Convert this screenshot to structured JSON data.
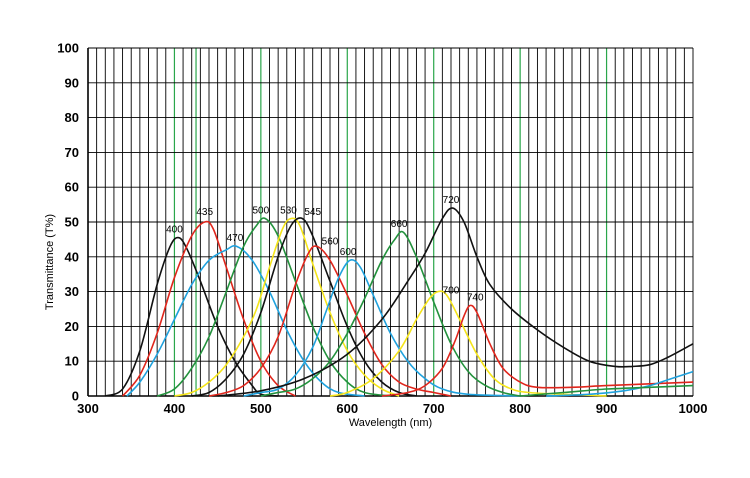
{
  "chart_data": {
    "type": "line",
    "title": "",
    "xlabel": "Wavelength (nm)",
    "ylabel": "Transmittance (T%)",
    "xlim": [
      300,
      1000
    ],
    "ylim": [
      0,
      100
    ],
    "x_ticks": [
      "300",
      "400",
      "500",
      "600",
      "700",
      "800",
      "900",
      "1000"
    ],
    "y_ticks": [
      "0",
      "10",
      "20",
      "30",
      "40",
      "50",
      "60",
      "70",
      "80",
      "90",
      "100"
    ],
    "grid": true,
    "legend": "none",
    "colors": {
      "black": "#111111",
      "red": "#e0261c",
      "blue": "#1fa2de",
      "green": "#23923d",
      "yellow": "#f5e51b",
      "grid_line": "#000000",
      "grid_highlight": "#2aa64a"
    },
    "series": [
      {
        "name": "400",
        "color": "black",
        "points": [
          [
            320,
            0
          ],
          [
            340,
            2
          ],
          [
            360,
            13
          ],
          [
            380,
            32
          ],
          [
            395,
            43
          ],
          [
            405,
            45.5
          ],
          [
            415,
            42
          ],
          [
            430,
            33
          ],
          [
            450,
            20
          ],
          [
            470,
            10
          ],
          [
            490,
            3
          ],
          [
            500,
            0.5
          ],
          [
            520,
            0
          ]
        ]
      },
      {
        "name": "435",
        "color": "red",
        "points": [
          [
            340,
            0
          ],
          [
            360,
            6
          ],
          [
            380,
            18
          ],
          [
            400,
            34
          ],
          [
            420,
            46
          ],
          [
            435,
            50
          ],
          [
            445,
            48
          ],
          [
            460,
            37
          ],
          [
            480,
            22
          ],
          [
            500,
            10
          ],
          [
            520,
            3
          ],
          [
            540,
            0
          ]
        ]
      },
      {
        "name": "470",
        "color": "blue",
        "points": [
          [
            345,
            0
          ],
          [
            360,
            4
          ],
          [
            380,
            12
          ],
          [
            400,
            22
          ],
          [
            420,
            32
          ],
          [
            440,
            39
          ],
          [
            460,
            42
          ],
          [
            472,
            43
          ],
          [
            490,
            39
          ],
          [
            510,
            30
          ],
          [
            530,
            19
          ],
          [
            550,
            10
          ],
          [
            570,
            4
          ],
          [
            590,
            1
          ],
          [
            620,
            0
          ]
        ]
      },
      {
        "name": "500",
        "color": "green",
        "points": [
          [
            380,
            0
          ],
          [
            400,
            2
          ],
          [
            420,
            8
          ],
          [
            440,
            17
          ],
          [
            460,
            30
          ],
          [
            480,
            43
          ],
          [
            495,
            49
          ],
          [
            505,
            51
          ],
          [
            520,
            46
          ],
          [
            540,
            33
          ],
          [
            560,
            20
          ],
          [
            580,
            10
          ],
          [
            600,
            4
          ],
          [
            620,
            1
          ],
          [
            650,
            0
          ]
        ]
      },
      {
        "name": "530",
        "color": "yellow",
        "points": [
          [
            400,
            0
          ],
          [
            420,
            1
          ],
          [
            440,
            4
          ],
          [
            460,
            9
          ],
          [
            480,
            17
          ],
          [
            495,
            25
          ],
          [
            510,
            37
          ],
          [
            525,
            48
          ],
          [
            535,
            51
          ],
          [
            545,
            49
          ],
          [
            560,
            38
          ],
          [
            580,
            24
          ],
          [
            600,
            13
          ],
          [
            620,
            6
          ],
          [
            640,
            2
          ],
          [
            660,
            0
          ]
        ]
      },
      {
        "name": "545",
        "color": "black",
        "points": [
          [
            420,
            0
          ],
          [
            440,
            1
          ],
          [
            460,
            5
          ],
          [
            480,
            12
          ],
          [
            500,
            24
          ],
          [
            520,
            40
          ],
          [
            535,
            49
          ],
          [
            548,
            51
          ],
          [
            560,
            46
          ],
          [
            580,
            33
          ],
          [
            600,
            20
          ],
          [
            620,
            10
          ],
          [
            640,
            4
          ],
          [
            660,
            1
          ],
          [
            680,
            0
          ]
        ]
      },
      {
        "name": "560",
        "color": "red",
        "points": [
          [
            440,
            0
          ],
          [
            460,
            1
          ],
          [
            480,
            3
          ],
          [
            500,
            8
          ],
          [
            520,
            17
          ],
          [
            540,
            32
          ],
          [
            555,
            41
          ],
          [
            565,
            43
          ],
          [
            580,
            39
          ],
          [
            600,
            29
          ],
          [
            620,
            18
          ],
          [
            640,
            9
          ],
          [
            660,
            4
          ],
          [
            680,
            2
          ],
          [
            700,
            1
          ],
          [
            720,
            0
          ]
        ]
      },
      {
        "name": "600",
        "color": "blue",
        "points": [
          [
            480,
            0
          ],
          [
            500,
            1
          ],
          [
            520,
            2
          ],
          [
            540,
            6
          ],
          [
            560,
            14
          ],
          [
            575,
            24
          ],
          [
            590,
            34
          ],
          [
            603,
            39
          ],
          [
            615,
            37
          ],
          [
            630,
            29
          ],
          [
            650,
            18
          ],
          [
            670,
            10
          ],
          [
            690,
            5
          ],
          [
            710,
            2
          ],
          [
            740,
            0.5
          ],
          [
            800,
            0
          ]
        ]
      },
      {
        "name": "660",
        "color": "green",
        "points": [
          [
            500,
            0
          ],
          [
            520,
            1
          ],
          [
            540,
            2
          ],
          [
            560,
            5
          ],
          [
            580,
            10
          ],
          [
            600,
            18
          ],
          [
            620,
            28
          ],
          [
            640,
            39
          ],
          [
            655,
            45
          ],
          [
            665,
            47
          ],
          [
            680,
            40
          ],
          [
            700,
            27
          ],
          [
            720,
            15
          ],
          [
            740,
            7
          ],
          [
            760,
            3
          ],
          [
            780,
            1
          ],
          [
            800,
            0
          ]
        ]
      },
      {
        "name": "720",
        "color": "black",
        "points": [
          [
            450,
            0
          ],
          [
            500,
            1.5
          ],
          [
            550,
            5
          ],
          [
            600,
            12
          ],
          [
            640,
            22
          ],
          [
            670,
            33
          ],
          [
            690,
            41
          ],
          [
            710,
            51
          ],
          [
            722,
            54
          ],
          [
            735,
            50
          ],
          [
            750,
            40
          ],
          [
            765,
            32
          ],
          [
            790,
            25
          ],
          [
            820,
            19
          ],
          [
            850,
            14
          ],
          [
            880,
            10
          ],
          [
            910,
            8.5
          ],
          [
            930,
            8.5
          ],
          [
            950,
            9
          ],
          [
            970,
            11
          ],
          [
            1000,
            15
          ]
        ]
      },
      {
        "name": "700",
        "color": "yellow",
        "points": [
          [
            580,
            0
          ],
          [
            600,
            1
          ],
          [
            630,
            5
          ],
          [
            660,
            13
          ],
          [
            680,
            22
          ],
          [
            695,
            28
          ],
          [
            705,
            30
          ],
          [
            715,
            29
          ],
          [
            730,
            22
          ],
          [
            750,
            12
          ],
          [
            770,
            5
          ],
          [
            790,
            2
          ],
          [
            810,
            1
          ],
          [
            850,
            0.5
          ],
          [
            900,
            0
          ]
        ]
      },
      {
        "name": "740",
        "color": "red",
        "points": [
          [
            640,
            0
          ],
          [
            670,
            1
          ],
          [
            690,
            3
          ],
          [
            710,
            8
          ],
          [
            725,
            16
          ],
          [
            735,
            23
          ],
          [
            742,
            26
          ],
          [
            750,
            24
          ],
          [
            765,
            15
          ],
          [
            780,
            8
          ],
          [
            800,
            4
          ],
          [
            820,
            2.5
          ],
          [
            860,
            2.5
          ],
          [
            900,
            3
          ],
          [
            950,
            3.5
          ],
          [
            1000,
            4
          ]
        ]
      },
      {
        "name": "",
        "color": "blue",
        "points": [
          [
            830,
            0
          ],
          [
            880,
            0.5
          ],
          [
            920,
            1.5
          ],
          [
            950,
            3
          ],
          [
            975,
            5
          ],
          [
            1000,
            7
          ]
        ]
      },
      {
        "name": "",
        "color": "green",
        "points": [
          [
            800,
            0
          ],
          [
            850,
            1
          ],
          [
            900,
            2
          ],
          [
            950,
            2.5
          ],
          [
            1000,
            3
          ]
        ]
      }
    ],
    "peak_labels": [
      {
        "text": "400",
        "x": 400,
        "y": 47
      },
      {
        "text": "435",
        "x": 435,
        "y": 52
      },
      {
        "text": "470",
        "x": 470,
        "y": 44.5
      },
      {
        "text": "500",
        "x": 500,
        "y": 52.5
      },
      {
        "text": "530",
        "x": 532,
        "y": 52.5
      },
      {
        "text": "545",
        "x": 560,
        "y": 52
      },
      {
        "text": "560",
        "x": 580,
        "y": 43.5
      },
      {
        "text": "600",
        "x": 601,
        "y": 40.5
      },
      {
        "text": "660",
        "x": 660,
        "y": 48.5
      },
      {
        "text": "720",
        "x": 720,
        "y": 55.5
      },
      {
        "text": "700",
        "x": 720,
        "y": 29.5
      },
      {
        "text": "740",
        "x": 748,
        "y": 27.5
      }
    ]
  }
}
